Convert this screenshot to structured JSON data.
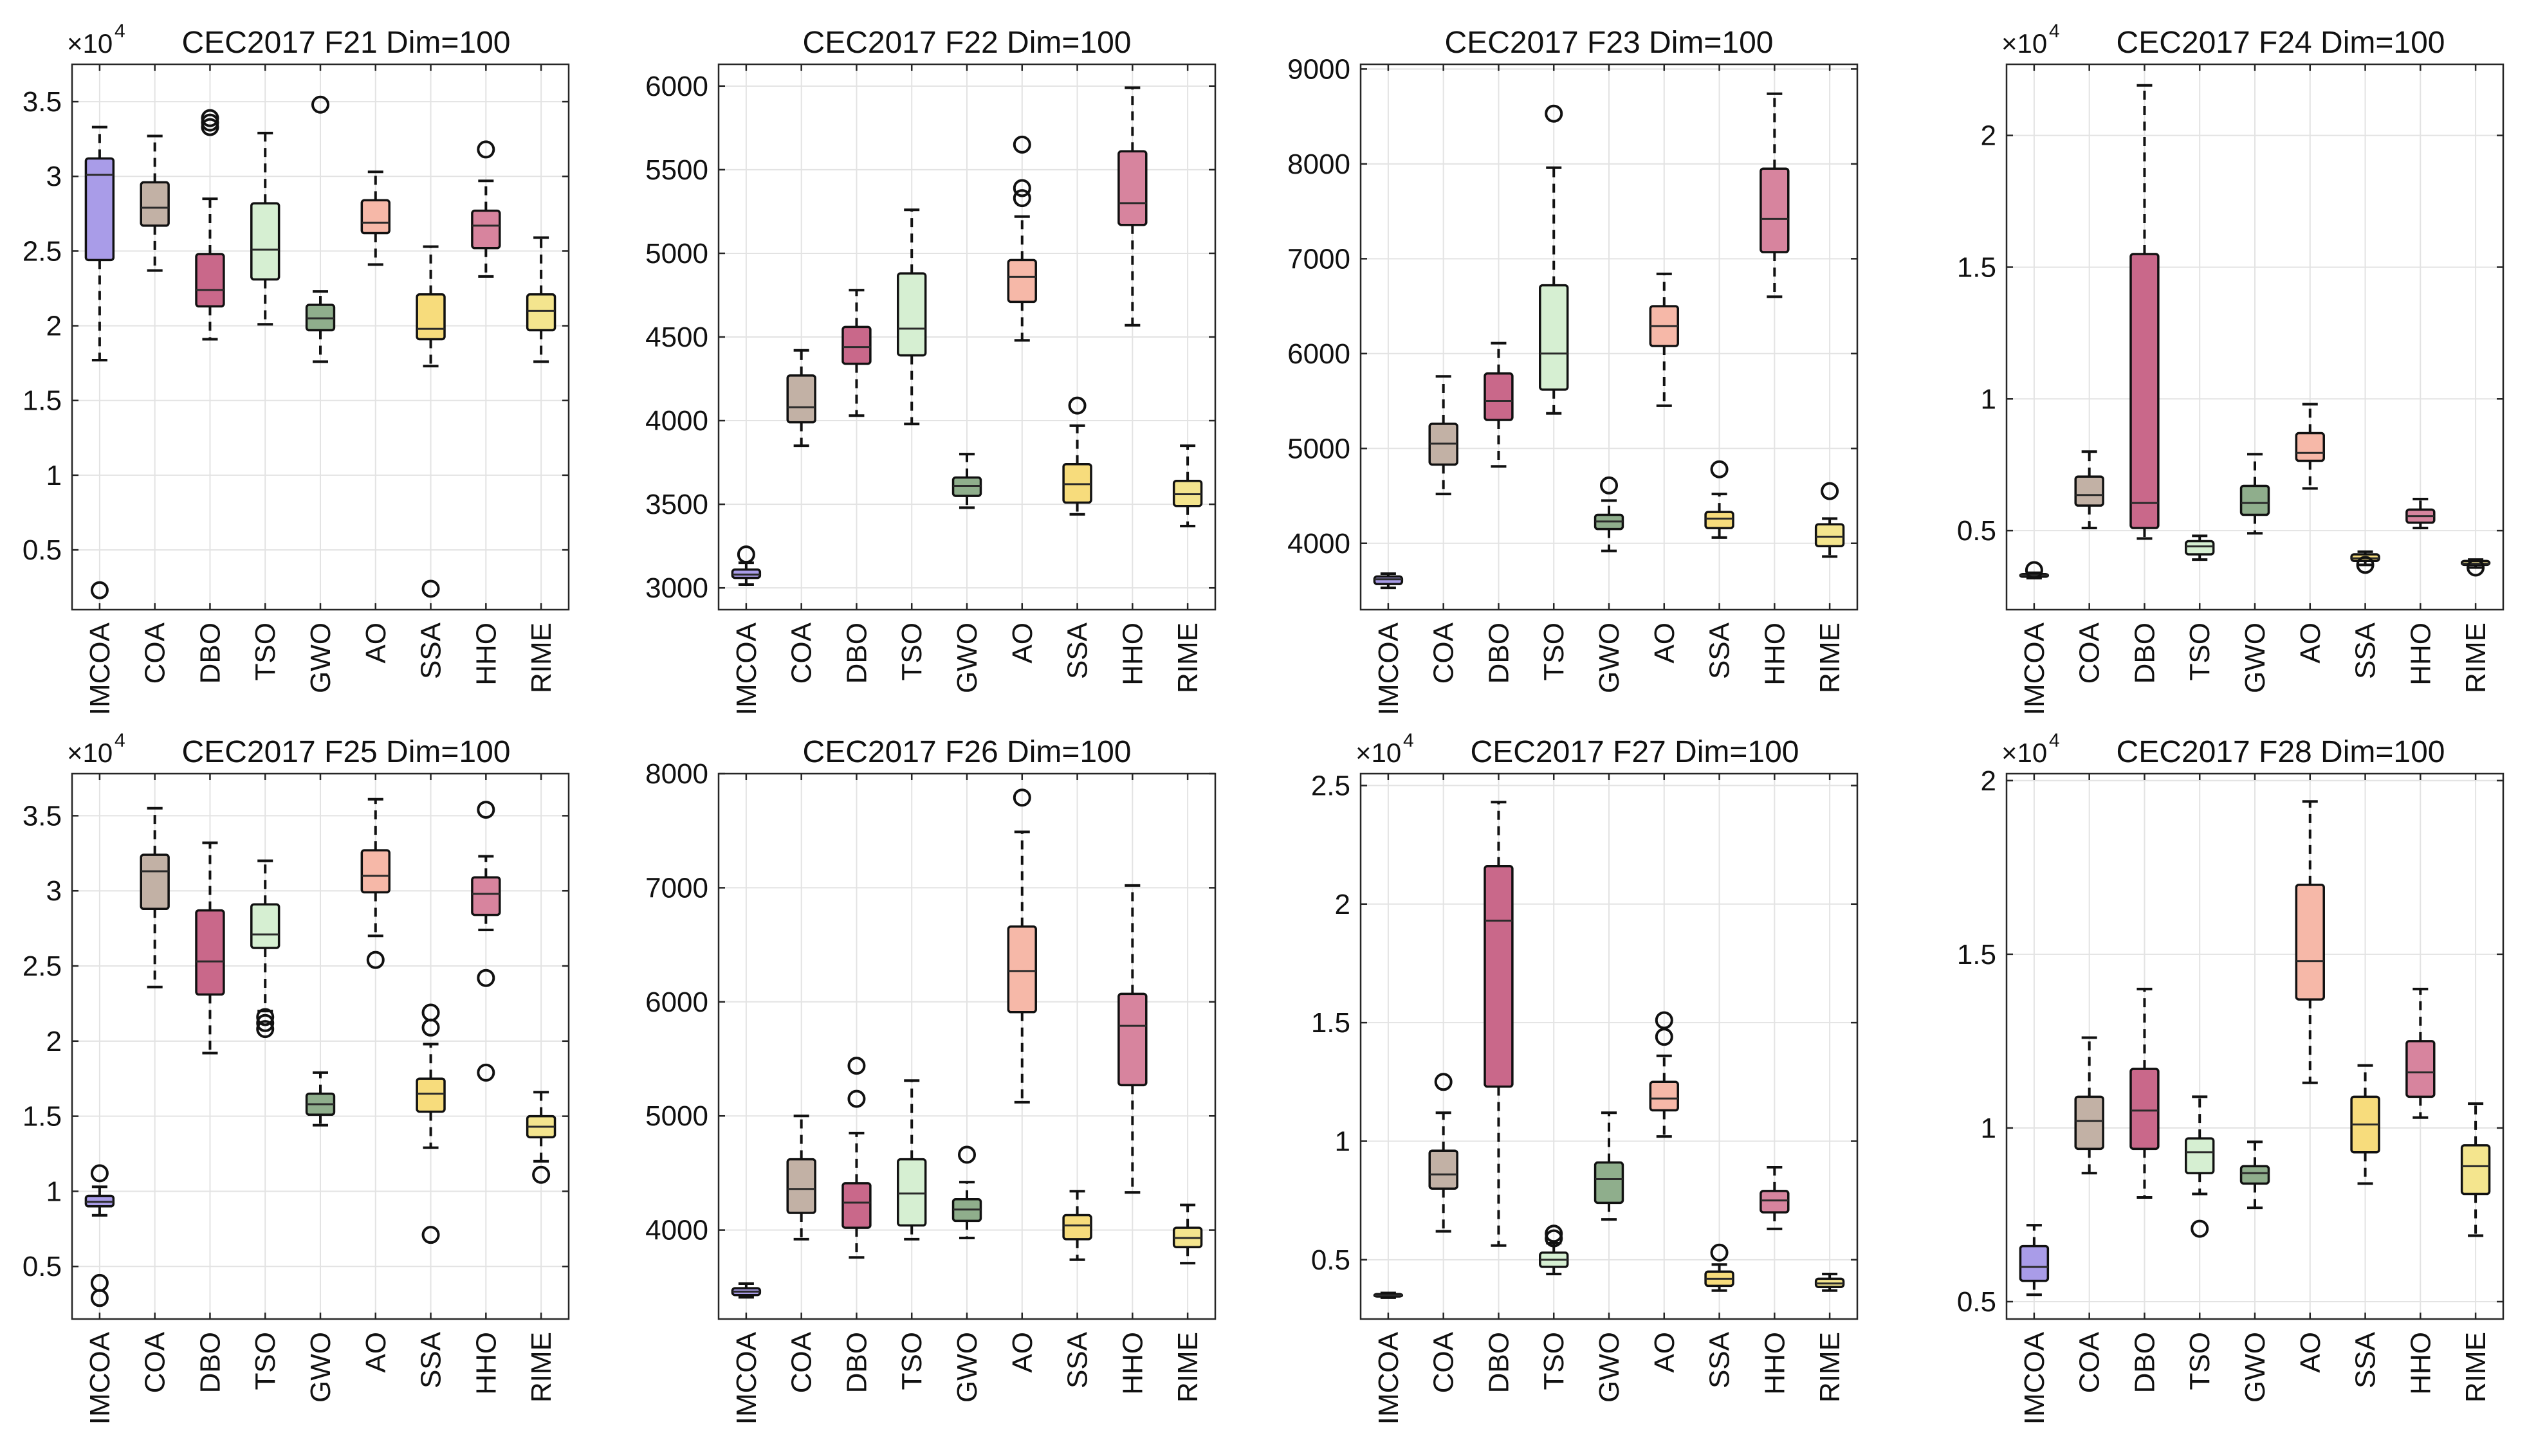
{
  "figure": {
    "rows": 2,
    "cols": 4
  },
  "colors": {
    "IMCOA": "#a99ce8",
    "COA": "#c2b1a5",
    "DBO": "#c9688a",
    "TSO": "#d6efd2",
    "GWO": "#8fae8c",
    "AO": "#f6b8a8",
    "SSA": "#f7dc7c",
    "HHO": "#d7849e",
    "RIME": "#f4e58e"
  },
  "chart_data": [
    {
      "type": "box",
      "title": "CEC2017 F21 Dim=100",
      "exponent_label": "×10",
      "exponent": "4",
      "categories": [
        "IMCOA",
        "COA",
        "DBO",
        "TSO",
        "GWO",
        "AO",
        "SSA",
        "HHO",
        "RIME"
      ],
      "ylim": [
        0.1,
        3.75
      ],
      "yticks": [
        0.5,
        1,
        1.5,
        2,
        2.5,
        3,
        3.5
      ],
      "ytick_labels": [
        "0.5",
        "1",
        "1.5",
        "2",
        "2.5",
        "3",
        "3.5"
      ],
      "boxes": [
        {
          "q1": 2.44,
          "median": 3.01,
          "q3": 3.12,
          "wlow": 1.77,
          "whigh": 3.33,
          "outliers": [
            0.23
          ]
        },
        {
          "q1": 2.67,
          "median": 2.79,
          "q3": 2.96,
          "wlow": 2.37,
          "whigh": 3.27,
          "outliers": []
        },
        {
          "q1": 2.13,
          "median": 2.24,
          "q3": 2.48,
          "wlow": 1.91,
          "whigh": 2.85,
          "outliers": [
            3.33,
            3.36,
            3.39
          ]
        },
        {
          "q1": 2.31,
          "median": 2.51,
          "q3": 2.82,
          "wlow": 2.01,
          "whigh": 3.29,
          "outliers": []
        },
        {
          "q1": 1.97,
          "median": 2.05,
          "q3": 2.14,
          "wlow": 1.76,
          "whigh": 2.23,
          "outliers": [
            3.48
          ]
        },
        {
          "q1": 2.62,
          "median": 2.69,
          "q3": 2.84,
          "wlow": 2.41,
          "whigh": 3.03,
          "outliers": []
        },
        {
          "q1": 1.91,
          "median": 1.98,
          "q3": 2.21,
          "wlow": 1.73,
          "whigh": 2.53,
          "outliers": [
            0.24
          ]
        },
        {
          "q1": 2.52,
          "median": 2.67,
          "q3": 2.77,
          "wlow": 2.33,
          "whigh": 2.97,
          "outliers": [
            3.18
          ]
        },
        {
          "q1": 1.97,
          "median": 2.1,
          "q3": 2.21,
          "wlow": 1.76,
          "whigh": 2.59,
          "outliers": []
        }
      ]
    },
    {
      "type": "box",
      "title": "CEC2017 F22 Dim=100",
      "exponent_label": "",
      "exponent": "",
      "categories": [
        "IMCOA",
        "COA",
        "DBO",
        "TSO",
        "GWO",
        "AO",
        "SSA",
        "HHO",
        "RIME"
      ],
      "ylim": [
        2870,
        6130
      ],
      "yticks": [
        3000,
        3500,
        4000,
        4500,
        5000,
        5500,
        6000
      ],
      "ytick_labels": [
        "3000",
        "3500",
        "4000",
        "4500",
        "5000",
        "5500",
        "6000"
      ],
      "boxes": [
        {
          "q1": 3060,
          "median": 3080,
          "q3": 3110,
          "wlow": 3020,
          "whigh": 3150,
          "outliers": [
            3200
          ]
        },
        {
          "q1": 3990,
          "median": 4080,
          "q3": 4270,
          "wlow": 3850,
          "whigh": 4420,
          "outliers": []
        },
        {
          "q1": 4340,
          "median": 4440,
          "q3": 4560,
          "wlow": 4030,
          "whigh": 4780,
          "outliers": []
        },
        {
          "q1": 4390,
          "median": 4550,
          "q3": 4880,
          "wlow": 3980,
          "whigh": 5260,
          "outliers": []
        },
        {
          "q1": 3550,
          "median": 3610,
          "q3": 3660,
          "wlow": 3480,
          "whigh": 3800,
          "outliers": []
        },
        {
          "q1": 4710,
          "median": 4860,
          "q3": 4960,
          "wlow": 4480,
          "whigh": 5220,
          "outliers": [
            5330,
            5390,
            5650
          ]
        },
        {
          "q1": 3510,
          "median": 3620,
          "q3": 3740,
          "wlow": 3440,
          "whigh": 3970,
          "outliers": [
            4090
          ]
        },
        {
          "q1": 5170,
          "median": 5300,
          "q3": 5610,
          "wlow": 4570,
          "whigh": 5990,
          "outliers": []
        },
        {
          "q1": 3490,
          "median": 3560,
          "q3": 3640,
          "wlow": 3370,
          "whigh": 3850,
          "outliers": []
        }
      ]
    },
    {
      "type": "box",
      "title": "CEC2017 F23 Dim=100",
      "exponent_label": "",
      "exponent": "",
      "categories": [
        "IMCOA",
        "COA",
        "DBO",
        "TSO",
        "GWO",
        "AO",
        "SSA",
        "HHO",
        "RIME"
      ],
      "ylim": [
        3300,
        9050
      ],
      "yticks": [
        4000,
        5000,
        6000,
        7000,
        8000,
        9000
      ],
      "ytick_labels": [
        "4000",
        "5000",
        "6000",
        "7000",
        "8000",
        "9000"
      ],
      "boxes": [
        {
          "q1": 3570,
          "median": 3620,
          "q3": 3650,
          "wlow": 3530,
          "whigh": 3680,
          "outliers": []
        },
        {
          "q1": 4830,
          "median": 5050,
          "q3": 5260,
          "wlow": 4520,
          "whigh": 5760,
          "outliers": []
        },
        {
          "q1": 5300,
          "median": 5500,
          "q3": 5790,
          "wlow": 4810,
          "whigh": 6110,
          "outliers": []
        },
        {
          "q1": 5620,
          "median": 6000,
          "q3": 6720,
          "wlow": 5370,
          "whigh": 7960,
          "outliers": [
            8530
          ]
        },
        {
          "q1": 4150,
          "median": 4230,
          "q3": 4300,
          "wlow": 3920,
          "whigh": 4450,
          "outliers": [
            4610
          ]
        },
        {
          "q1": 6080,
          "median": 6290,
          "q3": 6500,
          "wlow": 5450,
          "whigh": 6840,
          "outliers": []
        },
        {
          "q1": 4160,
          "median": 4260,
          "q3": 4330,
          "wlow": 4060,
          "whigh": 4520,
          "outliers": [
            4780
          ]
        },
        {
          "q1": 7070,
          "median": 7420,
          "q3": 7950,
          "wlow": 6600,
          "whigh": 8740,
          "outliers": []
        },
        {
          "q1": 3970,
          "median": 4070,
          "q3": 4200,
          "wlow": 3860,
          "whigh": 4260,
          "outliers": [
            4550
          ]
        }
      ]
    },
    {
      "type": "box",
      "title": "CEC2017 F24 Dim=100",
      "exponent_label": "×10",
      "exponent": "4",
      "categories": [
        "IMCOA",
        "COA",
        "DBO",
        "TSO",
        "GWO",
        "AO",
        "SSA",
        "HHO",
        "RIME"
      ],
      "ylim": [
        0.2,
        2.27
      ],
      "yticks": [
        0.5,
        1,
        1.5,
        2
      ],
      "ytick_labels": [
        "0.5",
        "1",
        "1.5",
        "2"
      ],
      "boxes": [
        {
          "q1": 0.325,
          "median": 0.33,
          "q3": 0.335,
          "wlow": 0.32,
          "whigh": 0.34,
          "outliers": [
            0.35
          ]
        },
        {
          "q1": 0.595,
          "median": 0.635,
          "q3": 0.705,
          "wlow": 0.51,
          "whigh": 0.8,
          "outliers": []
        },
        {
          "q1": 0.51,
          "median": 0.605,
          "q3": 1.55,
          "wlow": 0.47,
          "whigh": 2.19,
          "outliers": []
        },
        {
          "q1": 0.41,
          "median": 0.44,
          "q3": 0.46,
          "wlow": 0.39,
          "whigh": 0.48,
          "outliers": []
        },
        {
          "q1": 0.56,
          "median": 0.605,
          "q3": 0.67,
          "wlow": 0.49,
          "whigh": 0.79,
          "outliers": []
        },
        {
          "q1": 0.765,
          "median": 0.795,
          "q3": 0.87,
          "wlow": 0.66,
          "whigh": 0.98,
          "outliers": []
        },
        {
          "q1": 0.385,
          "median": 0.395,
          "q3": 0.41,
          "wlow": 0.37,
          "whigh": 0.42,
          "outliers": [
            0.37
          ]
        },
        {
          "q1": 0.53,
          "median": 0.555,
          "q3": 0.58,
          "wlow": 0.51,
          "whigh": 0.62,
          "outliers": []
        },
        {
          "q1": 0.37,
          "median": 0.375,
          "q3": 0.385,
          "wlow": 0.36,
          "whigh": 0.39,
          "outliers": [
            0.36
          ]
        }
      ]
    },
    {
      "type": "box",
      "title": "CEC2017 F25 Dim=100",
      "exponent_label": "×10",
      "exponent": "4",
      "categories": [
        "IMCOA",
        "COA",
        "DBO",
        "TSO",
        "GWO",
        "AO",
        "SSA",
        "HHO",
        "RIME"
      ],
      "ylim": [
        0.15,
        3.78
      ],
      "yticks": [
        0.5,
        1,
        1.5,
        2,
        2.5,
        3,
        3.5
      ],
      "ytick_labels": [
        "0.5",
        "1",
        "1.5",
        "2",
        "2.5",
        "3",
        "3.5"
      ],
      "boxes": [
        {
          "q1": 0.9,
          "median": 0.93,
          "q3": 0.97,
          "wlow": 0.84,
          "whigh": 1.03,
          "outliers": [
            1.12,
            0.39,
            0.29
          ]
        },
        {
          "q1": 2.88,
          "median": 3.13,
          "q3": 3.24,
          "wlow": 2.36,
          "whigh": 3.55,
          "outliers": []
        },
        {
          "q1": 2.31,
          "median": 2.53,
          "q3": 2.87,
          "wlow": 1.92,
          "whigh": 3.32,
          "outliers": []
        },
        {
          "q1": 2.62,
          "median": 2.71,
          "q3": 2.91,
          "wlow": 2.2,
          "whigh": 3.2,
          "outliers": [
            2.16,
            2.12,
            2.08
          ]
        },
        {
          "q1": 1.51,
          "median": 1.58,
          "q3": 1.65,
          "wlow": 1.44,
          "whigh": 1.79,
          "outliers": []
        },
        {
          "q1": 2.99,
          "median": 3.1,
          "q3": 3.27,
          "wlow": 2.7,
          "whigh": 3.61,
          "outliers": [
            2.54
          ]
        },
        {
          "q1": 1.53,
          "median": 1.65,
          "q3": 1.75,
          "wlow": 1.29,
          "whigh": 1.98,
          "outliers": [
            2.19,
            2.09,
            0.71
          ]
        },
        {
          "q1": 2.84,
          "median": 2.98,
          "q3": 3.09,
          "wlow": 2.74,
          "whigh": 3.23,
          "outliers": [
            3.54,
            2.42,
            1.79
          ]
        },
        {
          "q1": 1.36,
          "median": 1.43,
          "q3": 1.5,
          "wlow": 1.2,
          "whigh": 1.66,
          "outliers": [
            1.11
          ]
        }
      ]
    },
    {
      "type": "box",
      "title": "CEC2017 F26 Dim=100",
      "exponent_label": "",
      "exponent": "",
      "categories": [
        "IMCOA",
        "COA",
        "DBO",
        "TSO",
        "GWO",
        "AO",
        "SSA",
        "HHO",
        "RIME"
      ],
      "ylim": [
        3220,
        8000
      ],
      "yticks": [
        4000,
        5000,
        6000,
        7000,
        8000
      ],
      "ytick_labels": [
        "4000",
        "5000",
        "6000",
        "7000",
        "8000"
      ],
      "boxes": [
        {
          "q1": 3430,
          "median": 3460,
          "q3": 3490,
          "wlow": 3410,
          "whigh": 3530,
          "outliers": []
        },
        {
          "q1": 4150,
          "median": 4360,
          "q3": 4620,
          "wlow": 3920,
          "whigh": 5000,
          "outliers": []
        },
        {
          "q1": 4020,
          "median": 4240,
          "q3": 4410,
          "wlow": 3760,
          "whigh": 4850,
          "outliers": [
            5150,
            5440
          ]
        },
        {
          "q1": 4040,
          "median": 4320,
          "q3": 4620,
          "wlow": 3920,
          "whigh": 5310,
          "outliers": []
        },
        {
          "q1": 4080,
          "median": 4180,
          "q3": 4270,
          "wlow": 3930,
          "whigh": 4420,
          "outliers": [
            4660
          ]
        },
        {
          "q1": 5910,
          "median": 6270,
          "q3": 6660,
          "wlow": 5120,
          "whigh": 7490,
          "outliers": [
            7790
          ]
        },
        {
          "q1": 3920,
          "median": 4040,
          "q3": 4130,
          "wlow": 3740,
          "whigh": 4340,
          "outliers": []
        },
        {
          "q1": 5270,
          "median": 5790,
          "q3": 6070,
          "wlow": 4330,
          "whigh": 7020,
          "outliers": []
        },
        {
          "q1": 3850,
          "median": 3930,
          "q3": 4020,
          "wlow": 3710,
          "whigh": 4220,
          "outliers": []
        }
      ]
    },
    {
      "type": "box",
      "title": "CEC2017 F27 Dim=100",
      "exponent_label": "×10",
      "exponent": "4",
      "categories": [
        "IMCOA",
        "COA",
        "DBO",
        "TSO",
        "GWO",
        "AO",
        "SSA",
        "HHO",
        "RIME"
      ],
      "ylim": [
        0.25,
        2.55
      ],
      "yticks": [
        0.5,
        1,
        1.5,
        2,
        2.5
      ],
      "ytick_labels": [
        "0.5",
        "1",
        "1.5",
        "2",
        "2.5"
      ],
      "boxes": [
        {
          "q1": 0.345,
          "median": 0.35,
          "q3": 0.355,
          "wlow": 0.34,
          "whigh": 0.36,
          "outliers": []
        },
        {
          "q1": 0.8,
          "median": 0.86,
          "q3": 0.96,
          "wlow": 0.62,
          "whigh": 1.12,
          "outliers": [
            1.25
          ]
        },
        {
          "q1": 1.23,
          "median": 1.93,
          "q3": 2.16,
          "wlow": 0.56,
          "whigh": 2.43,
          "outliers": []
        },
        {
          "q1": 0.47,
          "median": 0.5,
          "q3": 0.53,
          "wlow": 0.44,
          "whigh": 0.57,
          "outliers": [
            0.59,
            0.61
          ]
        },
        {
          "q1": 0.74,
          "median": 0.84,
          "q3": 0.91,
          "wlow": 0.67,
          "whigh": 1.12,
          "outliers": []
        },
        {
          "q1": 1.13,
          "median": 1.18,
          "q3": 1.25,
          "wlow": 1.02,
          "whigh": 1.36,
          "outliers": [
            1.44,
            1.51
          ]
        },
        {
          "q1": 0.39,
          "median": 0.42,
          "q3": 0.45,
          "wlow": 0.37,
          "whigh": 0.48,
          "outliers": [
            0.53
          ]
        },
        {
          "q1": 0.7,
          "median": 0.75,
          "q3": 0.79,
          "wlow": 0.63,
          "whigh": 0.89,
          "outliers": []
        },
        {
          "q1": 0.385,
          "median": 0.4,
          "q3": 0.42,
          "wlow": 0.37,
          "whigh": 0.44,
          "outliers": []
        }
      ]
    },
    {
      "type": "box",
      "title": "CEC2017 F28 Dim=100",
      "exponent_label": "×10",
      "exponent": "4",
      "categories": [
        "IMCOA",
        "COA",
        "DBO",
        "TSO",
        "GWO",
        "AO",
        "SSA",
        "HHO",
        "RIME"
      ],
      "ylim": [
        0.45,
        2.02
      ],
      "yticks": [
        0.5,
        1,
        1.5,
        2
      ],
      "ytick_labels": [
        "0.5",
        "1",
        "1.5",
        "2"
      ],
      "boxes": [
        {
          "q1": 0.56,
          "median": 0.6,
          "q3": 0.66,
          "wlow": 0.52,
          "whigh": 0.72,
          "outliers": []
        },
        {
          "q1": 0.94,
          "median": 1.02,
          "q3": 1.09,
          "wlow": 0.87,
          "whigh": 1.26,
          "outliers": []
        },
        {
          "q1": 0.94,
          "median": 1.05,
          "q3": 1.17,
          "wlow": 0.8,
          "whigh": 1.4,
          "outliers": []
        },
        {
          "q1": 0.87,
          "median": 0.93,
          "q3": 0.97,
          "wlow": 0.81,
          "whigh": 1.09,
          "outliers": [
            0.71
          ]
        },
        {
          "q1": 0.84,
          "median": 0.87,
          "q3": 0.89,
          "wlow": 0.77,
          "whigh": 0.96,
          "outliers": []
        },
        {
          "q1": 1.37,
          "median": 1.48,
          "q3": 1.7,
          "wlow": 1.13,
          "whigh": 1.94,
          "outliers": []
        },
        {
          "q1": 0.93,
          "median": 1.01,
          "q3": 1.09,
          "wlow": 0.84,
          "whigh": 1.18,
          "outliers": []
        },
        {
          "q1": 1.09,
          "median": 1.16,
          "q3": 1.25,
          "wlow": 1.03,
          "whigh": 1.4,
          "outliers": []
        },
        {
          "q1": 0.81,
          "median": 0.89,
          "q3": 0.95,
          "wlow": 0.69,
          "whigh": 1.07,
          "outliers": []
        }
      ]
    }
  ]
}
